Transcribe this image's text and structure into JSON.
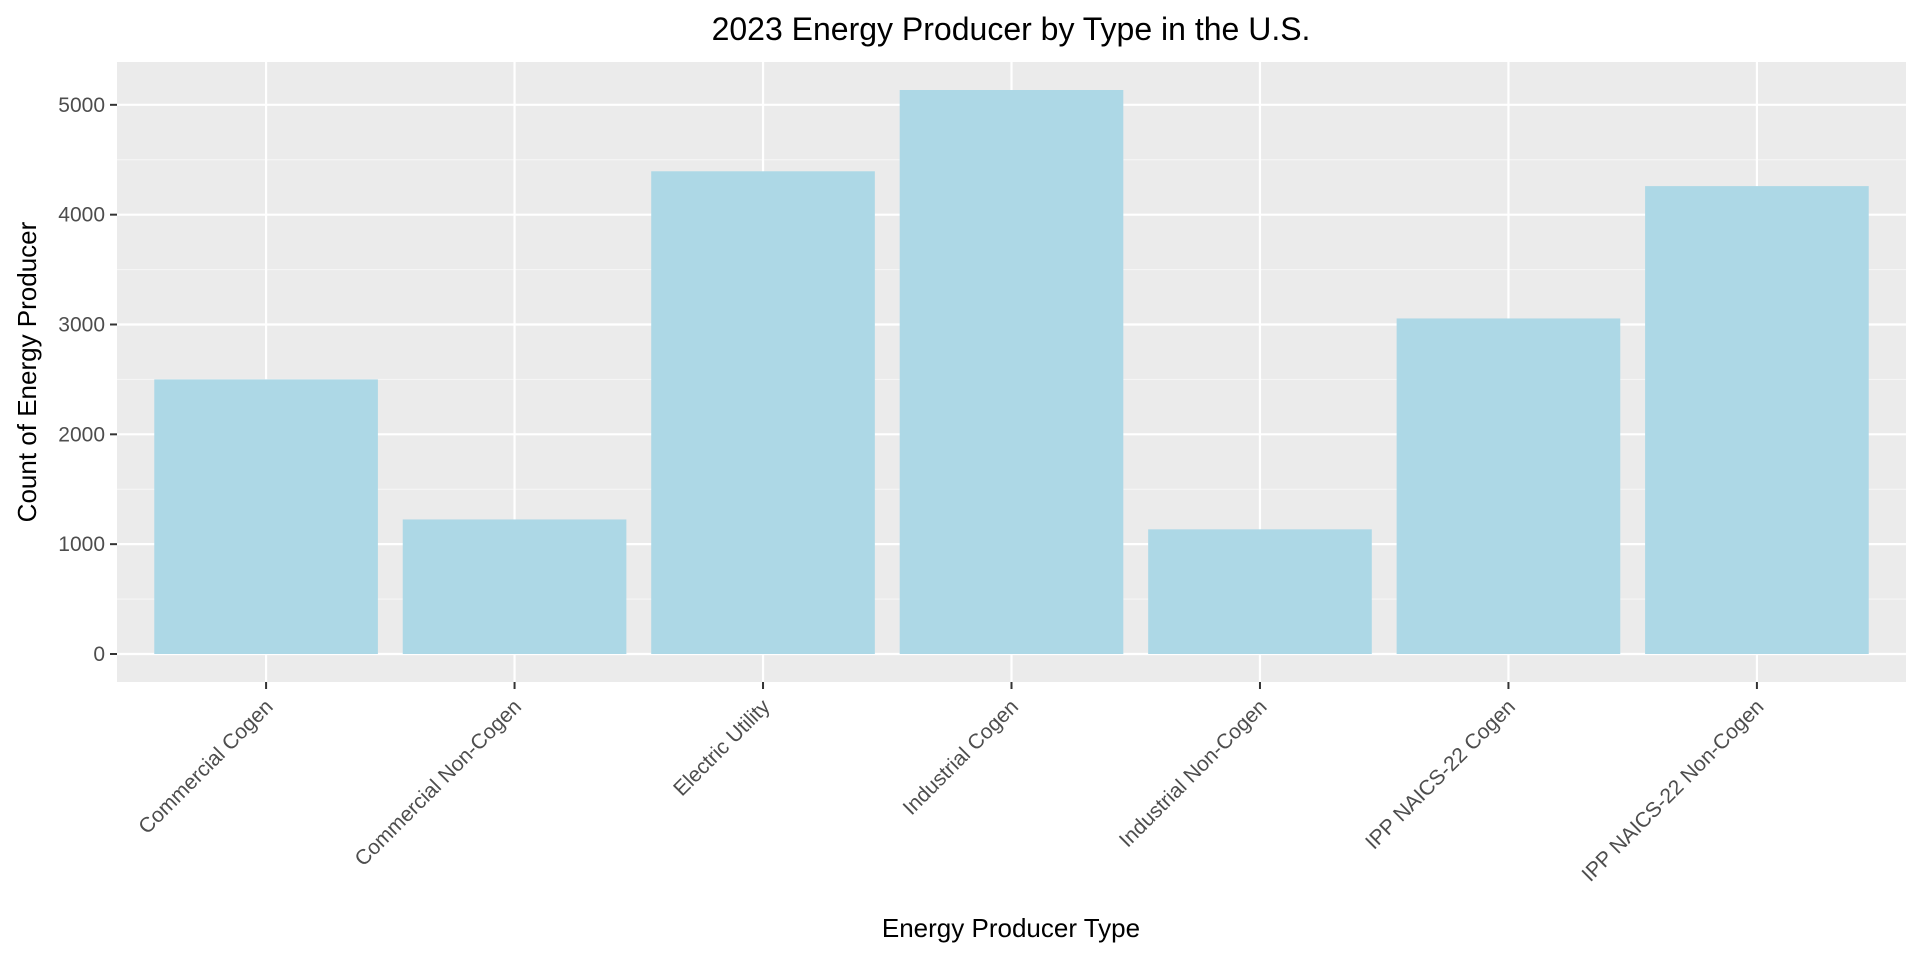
{
  "chart_data": {
    "type": "bar",
    "title": "2023 Energy Producer by Type in the U.S.",
    "xlabel": "Energy Producer Type",
    "ylabel": "Count of Energy Producer",
    "categories": [
      "Commercial Cogen",
      "Commercial Non-Cogen",
      "Electric Utility",
      "Industrial Cogen",
      "Industrial Non-Cogen",
      "IPP NAICS-22 Cogen",
      "IPP NAICS-22 Non-Cogen"
    ],
    "values": [
      2500,
      1225,
      4395,
      5135,
      1135,
      3055,
      4260
    ],
    "ylim": [
      -255,
      5390
    ],
    "yticks": [
      0,
      1000,
      2000,
      3000,
      4000,
      5000
    ],
    "ytick_labels": [
      "0",
      "1000",
      "2000",
      "3000",
      "4000",
      "5000"
    ],
    "grid": true,
    "legend": "none",
    "colors": {
      "bar": "#add8e6",
      "panel": "#ebebeb",
      "grid_major": "#ffffff",
      "grid_minor": "#f5f5f5",
      "tick": "#333333"
    }
  }
}
